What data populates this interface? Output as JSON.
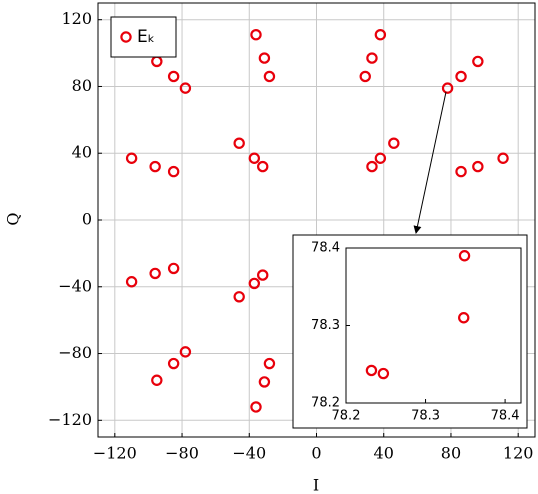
{
  "chart_data": [
    {
      "type": "scatter",
      "xlabel": "I",
      "ylabel": "Q",
      "grid": true,
      "legend": "upper left",
      "xlim": [
        -130,
        130
      ],
      "ylim": [
        -130,
        130
      ],
      "xticks": [
        {
          "value": -120,
          "label": "−120"
        },
        {
          "value": -80,
          "label": "−80"
        },
        {
          "value": -40,
          "label": "−40"
        },
        0,
        40,
        80,
        120
      ],
      "yticks": [
        {
          "value": -120,
          "label": "−120"
        },
        {
          "value": -80,
          "label": "−80"
        },
        {
          "value": -40,
          "label": "−40"
        },
        0,
        40,
        80,
        120
      ],
      "x": [
        -95,
        -85,
        -78,
        -36,
        -31,
        -28,
        38,
        33,
        29,
        78,
        86,
        96,
        -110,
        -96,
        -85,
        -46,
        -37,
        -32,
        38,
        33,
        46,
        86,
        96,
        111,
        -110,
        -96,
        -85,
        -46,
        -37,
        -32,
        -95,
        -85,
        -78,
        -36,
        -31,
        -28
      ],
      "series": [
        {
          "name": "Eₖ",
          "color": "#e8000b",
          "values": [
            95,
            86,
            79,
            111,
            97,
            86,
            111,
            97,
            86,
            79,
            86,
            95,
            37,
            32,
            29,
            46,
            37,
            32,
            37,
            32,
            46,
            29,
            32,
            37,
            -37,
            -32,
            -29,
            -46,
            -38,
            -33,
            -96,
            -86,
            -79,
            -112,
            -97,
            -86
          ]
        }
      ]
    },
    {
      "type": "scatter",
      "xlim": [
        78.2,
        78.42
      ],
      "ylim": [
        78.2,
        78.4
      ],
      "xticks": [
        78.2,
        78.3,
        78.4
      ],
      "yticks": [
        78.2,
        78.3,
        78.4
      ],
      "x": [
        78.232,
        78.247,
        78.348,
        78.349
      ],
      "series": [
        {
          "color": "#e8000b",
          "values": [
            78.242,
            78.238,
            78.31,
            78.39
          ]
        }
      ]
    }
  ]
}
